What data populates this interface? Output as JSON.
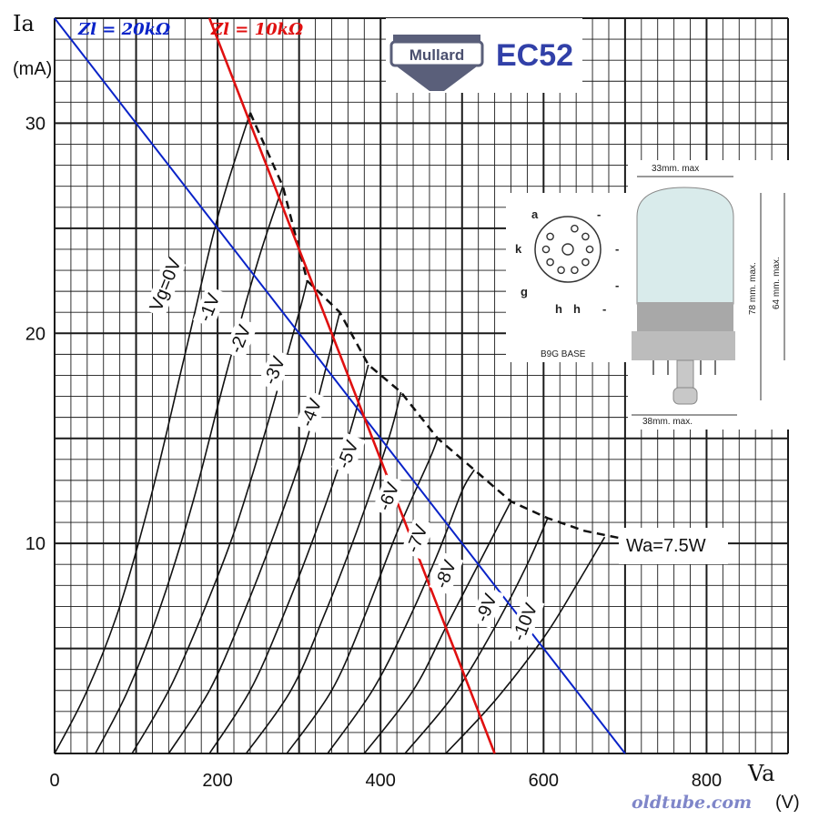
{
  "brand": {
    "logo_text": "Mullard",
    "tube_name": "EC52"
  },
  "watermark": "oldtube.com",
  "base_diagram": {
    "caption": "B9G BASE",
    "pins": {
      "a": "a",
      "k": "k",
      "g": "g",
      "h1": "h",
      "h2": "h",
      "d1": "-",
      "d2": "-",
      "d3": "-",
      "d4": "-"
    }
  },
  "dimensions": {
    "top_width": "33mm. max",
    "bottom_width": "38mm. max.",
    "total_height": "78 mm. max.",
    "seated_height": "64 mm. max."
  },
  "colors": {
    "load_20k": "#0a23c8",
    "load_10k": "#e01010",
    "curves": "#111111",
    "grid": "#1a1a1a",
    "watermark": "#7f86c9",
    "bulb": "#d9ebeb",
    "base": "#b4b4b4"
  },
  "chart_data": {
    "type": "line",
    "xlabel": "Va",
    "xunit": "(V)",
    "ylabel": "Ia",
    "yunit": "(mA)",
    "xlim": [
      0,
      900
    ],
    "ylim": [
      0,
      35
    ],
    "x_ticks": [
      0,
      200,
      400,
      600,
      800
    ],
    "y_ticks": [
      10,
      20,
      30
    ],
    "grid": true,
    "series": [
      {
        "name": "Vg=0V",
        "label": "Vg=0V",
        "points": [
          [
            0,
            0
          ],
          [
            40,
            3
          ],
          [
            80,
            7
          ],
          [
            120,
            12.5
          ],
          [
            160,
            19
          ],
          [
            200,
            25.5
          ],
          [
            240,
            30.5
          ]
        ]
      },
      {
        "name": "-1V",
        "label": "-1V",
        "points": [
          [
            50,
            0
          ],
          [
            90,
            3
          ],
          [
            130,
            7
          ],
          [
            170,
            12
          ],
          [
            210,
            18
          ],
          [
            250,
            23.5
          ],
          [
            280,
            27
          ]
        ]
      },
      {
        "name": "-2V",
        "label": "-2V",
        "points": [
          [
            95,
            0
          ],
          [
            140,
            3
          ],
          [
            180,
            6.5
          ],
          [
            220,
            10.5
          ],
          [
            260,
            15.5
          ],
          [
            300,
            21
          ],
          [
            310,
            22.5
          ]
        ]
      },
      {
        "name": "-3V",
        "label": "-3V",
        "points": [
          [
            140,
            0
          ],
          [
            190,
            3
          ],
          [
            230,
            6.5
          ],
          [
            270,
            10.5
          ],
          [
            310,
            15
          ],
          [
            350,
            21
          ]
        ]
      },
      {
        "name": "-4V",
        "label": "-4V",
        "points": [
          [
            190,
            0
          ],
          [
            240,
            3
          ],
          [
            280,
            6.5
          ],
          [
            320,
            10.5
          ],
          [
            360,
            15
          ],
          [
            385,
            18.5
          ]
        ]
      },
      {
        "name": "-5V",
        "label": "-5V",
        "points": [
          [
            235,
            0
          ],
          [
            290,
            3
          ],
          [
            330,
            6.5
          ],
          [
            370,
            10.5
          ],
          [
            410,
            15
          ],
          [
            425,
            17.2
          ]
        ]
      },
      {
        "name": "-6V",
        "label": "-6V",
        "points": [
          [
            285,
            0
          ],
          [
            340,
            3
          ],
          [
            380,
            6.5
          ],
          [
            420,
            10.5
          ],
          [
            460,
            14
          ],
          [
            470,
            15
          ]
        ]
      },
      {
        "name": "-7V",
        "label": "-7V",
        "points": [
          [
            335,
            0
          ],
          [
            390,
            3
          ],
          [
            430,
            6
          ],
          [
            470,
            9.5
          ],
          [
            500,
            12.5
          ],
          [
            515,
            13.5
          ]
        ]
      },
      {
        "name": "-8V",
        "label": "-8V",
        "points": [
          [
            380,
            0
          ],
          [
            440,
            3
          ],
          [
            480,
            6
          ],
          [
            520,
            9
          ],
          [
            560,
            12
          ]
        ]
      },
      {
        "name": "-9V",
        "label": "-9V",
        "points": [
          [
            430,
            0
          ],
          [
            490,
            2.8
          ],
          [
            540,
            6
          ],
          [
            580,
            9
          ],
          [
            605,
            11.2
          ]
        ]
      },
      {
        "name": "-10V",
        "label": "-10V",
        "points": [
          [
            480,
            0
          ],
          [
            540,
            2.5
          ],
          [
            600,
            5.5
          ],
          [
            640,
            8
          ],
          [
            675,
            10.3
          ]
        ]
      }
    ],
    "max_dissipation": {
      "label": "Wa=7.5W",
      "points": [
        [
          240,
          30.5
        ],
        [
          280,
          27
        ],
        [
          310,
          22.5
        ],
        [
          350,
          21
        ],
        [
          385,
          18.5
        ],
        [
          425,
          17.2
        ],
        [
          470,
          15
        ],
        [
          515,
          13.5
        ],
        [
          560,
          12
        ],
        [
          605,
          11.2
        ],
        [
          650,
          10.6
        ],
        [
          700,
          10.2
        ]
      ]
    },
    "load_lines": [
      {
        "name": "Zl = 20kΩ",
        "label": "Zl = 20kΩ",
        "points": [
          [
            0,
            35
          ],
          [
            700,
            0
          ]
        ]
      },
      {
        "name": "Zl = 10kΩ",
        "label": "Zl = 10kΩ",
        "points": [
          [
            190,
            35
          ],
          [
            540,
            0
          ]
        ]
      }
    ]
  }
}
